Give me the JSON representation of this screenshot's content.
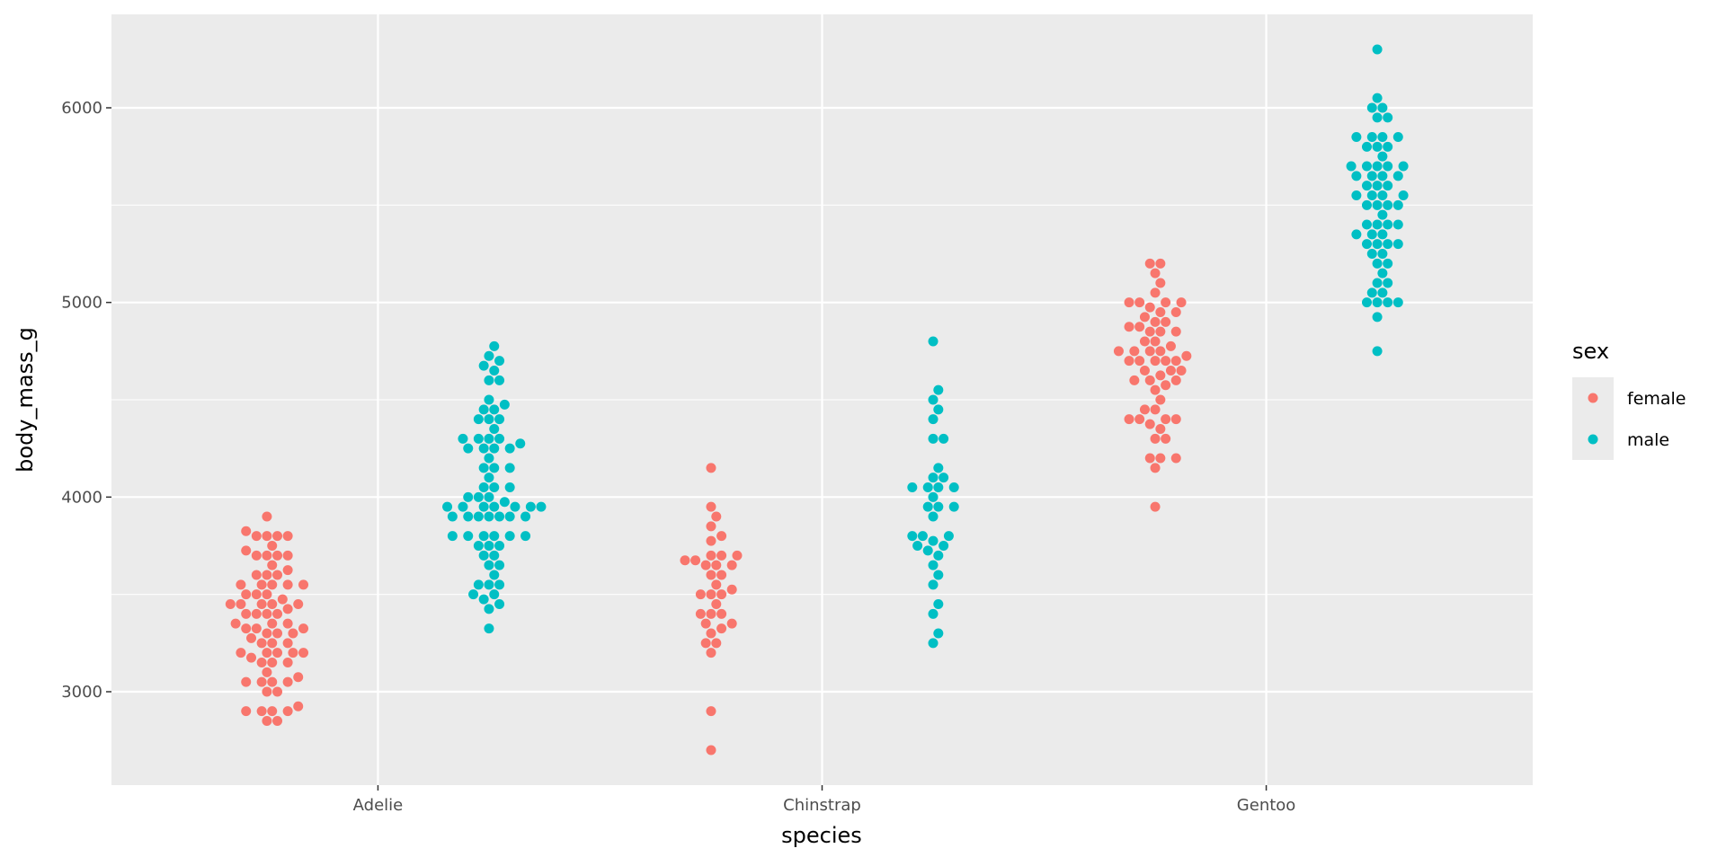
{
  "chart_data": {
    "type": "scatter",
    "subtype": "beeswarm",
    "xlabel": "species",
    "ylabel": "body_mass_g",
    "categories": [
      "Adelie",
      "Chinstrap",
      "Gentoo"
    ],
    "ylim": [
      2520,
      6480
    ],
    "yticks": [
      3000,
      4000,
      5000,
      6000
    ],
    "grid": true,
    "legend": {
      "title": "sex",
      "placement": "right",
      "entries": [
        "female",
        "male"
      ]
    },
    "colors": {
      "female": "#F8766D",
      "male": "#00BFC4",
      "panel": "#EBEBEB",
      "grid": "#FFFFFF"
    },
    "series": [
      {
        "name": "female",
        "values": {
          "Adelie": [
            2850,
            2850,
            2900,
            2900,
            2900,
            2900,
            2925,
            3000,
            3000,
            3050,
            3050,
            3050,
            3050,
            3075,
            3100,
            3150,
            3150,
            3150,
            3175,
            3200,
            3200,
            3200,
            3200,
            3200,
            3250,
            3250,
            3250,
            3275,
            3300,
            3300,
            3300,
            3325,
            3325,
            3325,
            3350,
            3350,
            3350,
            3400,
            3400,
            3400,
            3400,
            3425,
            3450,
            3450,
            3450,
            3450,
            3450,
            3475,
            3500,
            3500,
            3500,
            3550,
            3550,
            3550,
            3550,
            3550,
            3600,
            3600,
            3600,
            3625,
            3650,
            3700,
            3700,
            3700,
            3700,
            3725,
            3750,
            3800,
            3800,
            3800,
            3800,
            3825,
            3900
          ],
          "Chinstrap": [
            2700,
            2900,
            3200,
            3250,
            3250,
            3300,
            3325,
            3350,
            3350,
            3400,
            3400,
            3400,
            3450,
            3500,
            3500,
            3500,
            3525,
            3550,
            3600,
            3600,
            3650,
            3650,
            3650,
            3675,
            3675,
            3700,
            3700,
            3700,
            3775,
            3800,
            3850,
            3900,
            3950,
            4150
          ],
          "Gentoo": [
            3950,
            4150,
            4200,
            4200,
            4200,
            4300,
            4300,
            4350,
            4375,
            4400,
            4400,
            4400,
            4400,
            4450,
            4450,
            4500,
            4550,
            4575,
            4600,
            4600,
            4600,
            4625,
            4650,
            4650,
            4650,
            4700,
            4700,
            4700,
            4700,
            4700,
            4725,
            4750,
            4750,
            4750,
            4750,
            4775,
            4800,
            4800,
            4850,
            4850,
            4850,
            4875,
            4875,
            4900,
            4900,
            4925,
            4950,
            4950,
            4975,
            5000,
            5000,
            5000,
            5000,
            5050,
            5100,
            5150,
            5200,
            5200
          ]
        }
      },
      {
        "name": "male",
        "values": {
          "Adelie": [
            3325,
            3425,
            3450,
            3475,
            3500,
            3500,
            3550,
            3550,
            3550,
            3600,
            3650,
            3650,
            3700,
            3700,
            3750,
            3750,
            3750,
            3800,
            3800,
            3800,
            3800,
            3800,
            3800,
            3900,
            3900,
            3900,
            3900,
            3900,
            3900,
            3900,
            3950,
            3950,
            3950,
            3950,
            3950,
            3950,
            3950,
            3975,
            4000,
            4000,
            4000,
            4050,
            4050,
            4050,
            4100,
            4150,
            4150,
            4150,
            4200,
            4250,
            4250,
            4250,
            4250,
            4275,
            4300,
            4300,
            4300,
            4300,
            4350,
            4400,
            4400,
            4400,
            4450,
            4450,
            4475,
            4500,
            4600,
            4600,
            4650,
            4675,
            4700,
            4725,
            4775
          ],
          "Chinstrap": [
            3250,
            3300,
            3400,
            3450,
            3550,
            3600,
            3650,
            3700,
            3725,
            3750,
            3750,
            3775,
            3800,
            3800,
            3800,
            3900,
            3950,
            3950,
            3950,
            4000,
            4050,
            4050,
            4050,
            4050,
            4100,
            4100,
            4150,
            4300,
            4300,
            4400,
            4450,
            4500,
            4550,
            4800
          ],
          "Gentoo": [
            4750,
            4925,
            5000,
            5000,
            5000,
            5000,
            5050,
            5050,
            5100,
            5100,
            5150,
            5200,
            5200,
            5250,
            5250,
            5300,
            5300,
            5300,
            5300,
            5350,
            5350,
            5350,
            5400,
            5400,
            5400,
            5400,
            5450,
            5500,
            5500,
            5500,
            5500,
            5550,
            5550,
            5550,
            5550,
            5600,
            5600,
            5600,
            5650,
            5650,
            5650,
            5650,
            5700,
            5700,
            5700,
            5700,
            5700,
            5750,
            5800,
            5800,
            5800,
            5850,
            5850,
            5850,
            5850,
            5950,
            5950,
            6000,
            6000,
            6050,
            6300
          ]
        }
      }
    ]
  }
}
